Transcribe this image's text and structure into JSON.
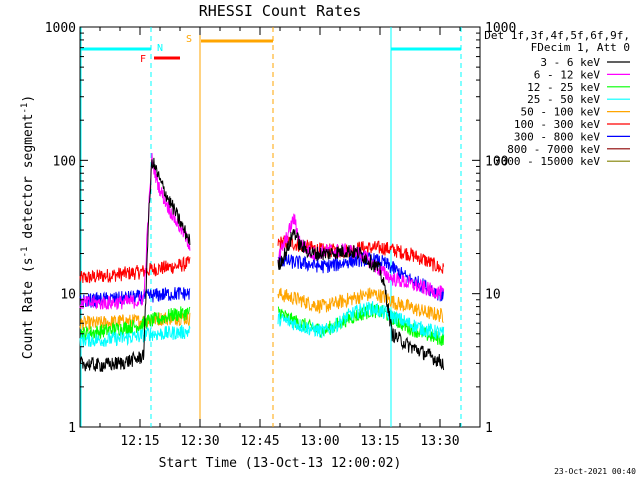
{
  "chart_data": {
    "type": "line",
    "title": "RHESSI Count Rates",
    "xlabel": "Start Time (13-Oct-13 12:00:02)",
    "ylabel_main": "Count Rate (s",
    "ylabel_sup1": "-1",
    "ylabel_mid": " detector segment",
    "ylabel_sup2": "-1",
    "ylabel_end": ")",
    "ylog": true,
    "ylim": [
      1,
      1000
    ],
    "xlim_minutes": [
      0,
      100
    ],
    "xticks": [
      {
        "minute": 15,
        "label": "12:15"
      },
      {
        "minute": 30,
        "label": "12:30"
      },
      {
        "minute": 45,
        "label": "12:45"
      },
      {
        "minute": 60,
        "label": "13:00"
      },
      {
        "minute": 75,
        "label": "13:15"
      },
      {
        "minute": 90,
        "label": "13:30"
      }
    ],
    "yticks": [
      {
        "value": 1,
        "label": "1"
      },
      {
        "value": 10,
        "label": "10"
      },
      {
        "value": 100,
        "label": "100"
      },
      {
        "value": 1000,
        "label": "1000"
      }
    ],
    "legend_header": [
      "Det 1f,3f,4f,5f,6f,9f,",
      "FDecim 1, Att 0"
    ],
    "series": [
      {
        "name": "3 - 6 keV",
        "color": "#000000",
        "seg1": [
          [
            0,
            3.0
          ],
          [
            5,
            2.9
          ],
          [
            10,
            3.0
          ],
          [
            15,
            3.3
          ],
          [
            16,
            3.6
          ],
          [
            17,
            30
          ],
          [
            18,
            100
          ],
          [
            19,
            85
          ],
          [
            20,
            70
          ],
          [
            22,
            52
          ],
          [
            24,
            40
          ],
          [
            26,
            30
          ],
          [
            27.5,
            25
          ]
        ],
        "seg2": [
          [
            49.5,
            16
          ],
          [
            52,
            22
          ],
          [
            53.5,
            30
          ],
          [
            55,
            23
          ],
          [
            58,
            20
          ],
          [
            62,
            20
          ],
          [
            67,
            21
          ],
          [
            70,
            20
          ],
          [
            72,
            18
          ],
          [
            75,
            15
          ],
          [
            76.5,
            10
          ],
          [
            78,
            5
          ],
          [
            82,
            4.1
          ],
          [
            86,
            3.6
          ],
          [
            91,
            3.0
          ]
        ]
      },
      {
        "name": "6 - 12 keV",
        "color": "#ff00ff",
        "seg1": [
          [
            0,
            8.5
          ],
          [
            5,
            8.5
          ],
          [
            10,
            8.6
          ],
          [
            15,
            8.8
          ],
          [
            16,
            9.5
          ],
          [
            17,
            35
          ],
          [
            18,
            102
          ],
          [
            19,
            75
          ],
          [
            20,
            60
          ],
          [
            22,
            45
          ],
          [
            24,
            35
          ],
          [
            26,
            28
          ],
          [
            27.5,
            23
          ]
        ],
        "seg2": [
          [
            49.5,
            18
          ],
          [
            52,
            28
          ],
          [
            53.5,
            37
          ],
          [
            55,
            24
          ],
          [
            58,
            20
          ],
          [
            62,
            21
          ],
          [
            67,
            21
          ],
          [
            70,
            20
          ],
          [
            72,
            18
          ],
          [
            75,
            15
          ],
          [
            78,
            13
          ],
          [
            82,
            12
          ],
          [
            86,
            11
          ],
          [
            91,
            10
          ]
        ]
      },
      {
        "name": "12 - 25 keV",
        "color": "#00ff00",
        "seg1": [
          [
            0,
            5.0
          ],
          [
            5,
            5.2
          ],
          [
            10,
            5.5
          ],
          [
            15,
            5.8
          ],
          [
            17,
            6.2
          ],
          [
            20,
            6.5
          ],
          [
            22,
            6.8
          ],
          [
            24,
            7.0
          ],
          [
            27.5,
            7.2
          ]
        ],
        "seg2": [
          [
            49.5,
            7.5
          ],
          [
            52,
            6.5
          ],
          [
            55,
            6.0
          ],
          [
            58,
            5.5
          ],
          [
            61,
            5.3
          ],
          [
            64,
            5.8
          ],
          [
            67,
            6.5
          ],
          [
            70,
            7.0
          ],
          [
            73,
            7.5
          ],
          [
            76,
            7.2
          ],
          [
            79,
            6.3
          ],
          [
            82,
            5.6
          ],
          [
            86,
            5.0
          ],
          [
            91,
            4.5
          ]
        ]
      },
      {
        "name": "25 - 50 keV",
        "color": "#00ffff",
        "seg1": [
          [
            0,
            4.5
          ],
          [
            5,
            4.5
          ],
          [
            10,
            4.6
          ],
          [
            15,
            4.8
          ],
          [
            17,
            5.0
          ],
          [
            20,
            5.0
          ],
          [
            24,
            5.1
          ],
          [
            27.5,
            5.2
          ]
        ],
        "seg2": [
          [
            49.5,
            6.5
          ],
          [
            52,
            6.2
          ],
          [
            55,
            5.8
          ],
          [
            58,
            5.4
          ],
          [
            61,
            5.2
          ],
          [
            64,
            5.8
          ],
          [
            67,
            6.8
          ],
          [
            70,
            7.5
          ],
          [
            73,
            7.8
          ],
          [
            76,
            7.2
          ],
          [
            79,
            6.6
          ],
          [
            82,
            6.0
          ],
          [
            86,
            5.4
          ],
          [
            91,
            5.0
          ]
        ]
      },
      {
        "name": "50 - 100 keV",
        "color": "#ffa500",
        "seg1": [
          [
            0,
            6.0
          ],
          [
            5,
            6.0
          ],
          [
            10,
            6.2
          ],
          [
            15,
            6.2
          ],
          [
            17,
            6.3
          ],
          [
            20,
            6.5
          ],
          [
            24,
            6.6
          ],
          [
            27.5,
            6.5
          ]
        ],
        "seg2": [
          [
            49.5,
            10
          ],
          [
            52,
            9.5
          ],
          [
            55,
            9.0
          ],
          [
            58,
            8.3
          ],
          [
            61,
            8.0
          ],
          [
            64,
            8.5
          ],
          [
            67,
            9.0
          ],
          [
            70,
            9.5
          ],
          [
            73,
            10.0
          ],
          [
            76,
            9.5
          ],
          [
            79,
            8.5
          ],
          [
            82,
            8.0
          ],
          [
            86,
            7.3
          ],
          [
            91,
            6.8
          ]
        ]
      },
      {
        "name": "100 - 300 keV",
        "color": "#ff0000",
        "seg1": [
          [
            0,
            13
          ],
          [
            5,
            13.5
          ],
          [
            10,
            14
          ],
          [
            15,
            14.5
          ],
          [
            17,
            15
          ],
          [
            20,
            15.5
          ],
          [
            24,
            16
          ],
          [
            27.5,
            17
          ]
        ],
        "seg2": [
          [
            49.5,
            24
          ],
          [
            52,
            24.5
          ],
          [
            55,
            23
          ],
          [
            58,
            22
          ],
          [
            61,
            21
          ],
          [
            64,
            21
          ],
          [
            67,
            21
          ],
          [
            70,
            22
          ],
          [
            73,
            22
          ],
          [
            76,
            22
          ],
          [
            79,
            21
          ],
          [
            82,
            20
          ],
          [
            86,
            18
          ],
          [
            91,
            15
          ]
        ]
      },
      {
        "name": "300 - 800 keV",
        "color": "#0000ff",
        "seg1": [
          [
            0,
            8.8
          ],
          [
            5,
            9.0
          ],
          [
            10,
            9.2
          ],
          [
            15,
            9.4
          ],
          [
            17,
            9.6
          ],
          [
            20,
            9.8
          ],
          [
            24,
            10
          ],
          [
            27.5,
            10
          ]
        ],
        "seg2": [
          [
            49.5,
            18
          ],
          [
            52,
            17.5
          ],
          [
            55,
            17
          ],
          [
            58,
            16.5
          ],
          [
            61,
            16
          ],
          [
            64,
            16.5
          ],
          [
            67,
            17.5
          ],
          [
            70,
            18
          ],
          [
            73,
            18
          ],
          [
            76,
            17
          ],
          [
            79,
            15
          ],
          [
            82,
            13
          ],
          [
            86,
            11.5
          ],
          [
            91,
            9.5
          ]
        ]
      },
      {
        "name": "800 - 7000 keV",
        "color": "#8b0000",
        "seg1": [],
        "seg2": []
      },
      {
        "name": "7000 - 15000 keV",
        "color": "#808000",
        "seg1": [],
        "seg2": []
      }
    ],
    "markers": [
      {
        "label": "N",
        "color": "#00ffff"
      },
      {
        "label": "F",
        "color": "#ff0000"
      },
      {
        "label": "S",
        "color": "#ffa500"
      }
    ],
    "timestamp": "23-Oct-2021 00:40"
  }
}
